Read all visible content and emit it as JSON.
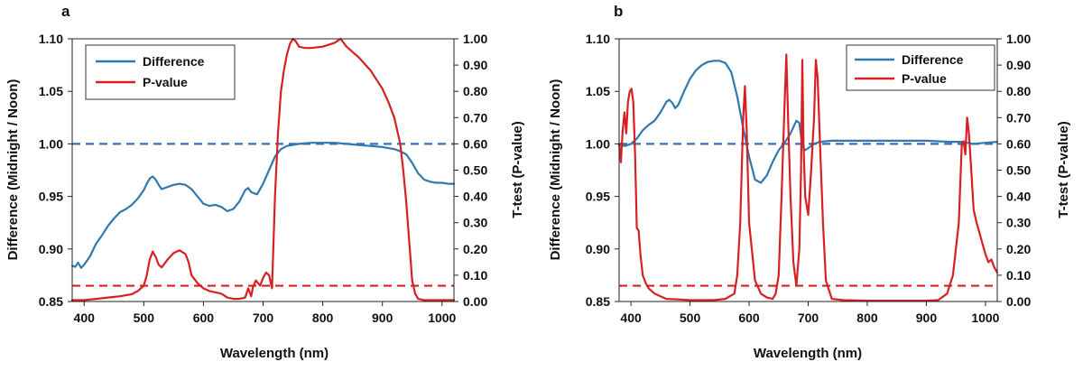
{
  "chart_data": [
    {
      "type": "line",
      "panel_label": "a",
      "xlabel": "Wavelength (nm)",
      "ylabel": "Difference (Midnight / Noon)",
      "y2label": "T-test (P-value)",
      "xlim": [
        380,
        1020
      ],
      "ylim": [
        0.85,
        1.1
      ],
      "y2lim": [
        0.0,
        1.0
      ],
      "xticks": [
        "400",
        "500",
        "600",
        "700",
        "800",
        "900",
        "1000"
      ],
      "yticks": [
        "0.85",
        "0.90",
        "0.95",
        "1.00",
        "1.05",
        "1.10"
      ],
      "y2ticks": [
        "0.00",
        "0.10",
        "0.20",
        "0.30",
        "0.40",
        "0.50",
        "0.60",
        "0.70",
        "0.80",
        "0.90",
        "1.00"
      ],
      "legend": {
        "position": "top-left",
        "entries": [
          "Difference",
          "P-value"
        ]
      },
      "reference_lines": [
        {
          "axis": "left",
          "value": 1.0,
          "color": "#3a6fb8",
          "style": "dashed"
        },
        {
          "axis": "right",
          "value": 0.06,
          "color": "#d62022",
          "style": "dashed"
        }
      ],
      "series": [
        {
          "name": "Difference",
          "axis": "left",
          "color": "#2e7ab0",
          "x": [
            380,
            385,
            390,
            395,
            400,
            410,
            420,
            430,
            440,
            450,
            460,
            470,
            480,
            490,
            500,
            505,
            510,
            515,
            520,
            525,
            530,
            540,
            550,
            560,
            570,
            580,
            590,
            600,
            610,
            620,
            630,
            640,
            650,
            660,
            670,
            675,
            680,
            690,
            700,
            710,
            720,
            730,
            740,
            750,
            760,
            780,
            800,
            820,
            840,
            860,
            880,
            900,
            910,
            920,
            930,
            940,
            950,
            960,
            970,
            980,
            990,
            1000,
            1010,
            1020
          ],
          "y": [
            0.884,
            0.883,
            0.887,
            0.882,
            0.885,
            0.893,
            0.905,
            0.913,
            0.922,
            0.929,
            0.935,
            0.938,
            0.942,
            0.948,
            0.956,
            0.962,
            0.967,
            0.969,
            0.966,
            0.961,
            0.957,
            0.959,
            0.961,
            0.962,
            0.961,
            0.957,
            0.95,
            0.943,
            0.941,
            0.942,
            0.94,
            0.936,
            0.938,
            0.945,
            0.956,
            0.958,
            0.954,
            0.952,
            0.962,
            0.975,
            0.988,
            0.995,
            0.998,
            0.999,
            1.0,
            1.001,
            1.001,
            1.001,
            1.0,
            0.999,
            0.998,
            0.997,
            0.996,
            0.995,
            0.993,
            0.99,
            0.982,
            0.972,
            0.966,
            0.964,
            0.963,
            0.963,
            0.962,
            0.962
          ]
        },
        {
          "name": "P-value",
          "axis": "right",
          "color": "#d62022",
          "x": [
            380,
            390,
            400,
            420,
            440,
            460,
            480,
            490,
            500,
            505,
            510,
            515,
            520,
            525,
            530,
            540,
            550,
            560,
            570,
            575,
            580,
            590,
            600,
            610,
            620,
            630,
            640,
            650,
            660,
            670,
            675,
            680,
            683,
            688,
            695,
            700,
            705,
            710,
            715,
            720,
            725,
            730,
            735,
            740,
            745,
            750,
            755,
            760,
            770,
            780,
            800,
            820,
            830,
            840,
            860,
            880,
            900,
            910,
            920,
            930,
            935,
            940,
            945,
            950,
            955,
            960,
            970,
            980,
            1000,
            1020
          ],
          "y": [
            0.005,
            0.005,
            0.005,
            0.01,
            0.015,
            0.02,
            0.028,
            0.04,
            0.06,
            0.1,
            0.16,
            0.19,
            0.17,
            0.14,
            0.13,
            0.16,
            0.185,
            0.195,
            0.18,
            0.15,
            0.1,
            0.07,
            0.05,
            0.04,
            0.035,
            0.03,
            0.015,
            0.01,
            0.01,
            0.015,
            0.05,
            0.02,
            0.055,
            0.08,
            0.06,
            0.09,
            0.11,
            0.1,
            0.05,
            0.4,
            0.64,
            0.8,
            0.88,
            0.94,
            0.98,
            1.0,
            0.99,
            0.97,
            0.965,
            0.965,
            0.97,
            0.985,
            1.0,
            0.97,
            0.93,
            0.88,
            0.81,
            0.76,
            0.7,
            0.6,
            0.5,
            0.38,
            0.23,
            0.08,
            0.03,
            0.01,
            0.005,
            0.005,
            0.005,
            0.005
          ]
        }
      ]
    },
    {
      "type": "line",
      "panel_label": "b",
      "xlabel": "Wavelength (nm)",
      "ylabel": "Difference (Midnight / Noon)",
      "y2label": "T-test (P-value)",
      "xlim": [
        380,
        1020
      ],
      "ylim": [
        0.85,
        1.1
      ],
      "y2lim": [
        0.0,
        1.0
      ],
      "xticks": [
        "400",
        "500",
        "600",
        "700",
        "800",
        "900",
        "1000"
      ],
      "yticks": [
        "0.85",
        "0.90",
        "0.95",
        "1.00",
        "1.05",
        "1.10"
      ],
      "y2ticks": [
        "0.00",
        "0.10",
        "0.20",
        "0.30",
        "0.40",
        "0.50",
        "0.60",
        "0.70",
        "0.80",
        "0.90",
        "1.00"
      ],
      "legend": {
        "position": "top-right",
        "entries": [
          "Difference",
          "P-value"
        ]
      },
      "reference_lines": [
        {
          "axis": "left",
          "value": 1.0,
          "color": "#3a6fb8",
          "style": "dashed"
        },
        {
          "axis": "right",
          "value": 0.06,
          "color": "#d62022",
          "style": "dashed"
        }
      ],
      "series": [
        {
          "name": "Difference",
          "axis": "left",
          "color": "#2e7ab0",
          "x": [
            380,
            390,
            400,
            410,
            420,
            430,
            440,
            450,
            460,
            465,
            470,
            475,
            480,
            490,
            500,
            510,
            520,
            530,
            540,
            550,
            560,
            570,
            580,
            590,
            600,
            610,
            620,
            630,
            640,
            650,
            660,
            670,
            680,
            685,
            690,
            695,
            700,
            710,
            720,
            740,
            760,
            800,
            850,
            900,
            940,
            960,
            980,
            1000,
            1020
          ],
          "y": [
            0.999,
            0.998,
            1.0,
            1.005,
            1.013,
            1.018,
            1.022,
            1.03,
            1.04,
            1.042,
            1.039,
            1.034,
            1.037,
            1.05,
            1.062,
            1.07,
            1.075,
            1.078,
            1.079,
            1.079,
            1.077,
            1.068,
            1.045,
            1.015,
            0.988,
            0.966,
            0.963,
            0.97,
            0.983,
            0.994,
            1.001,
            1.01,
            1.022,
            1.02,
            0.998,
            0.994,
            0.996,
            1.0,
            1.002,
            1.003,
            1.003,
            1.003,
            1.003,
            1.003,
            1.002,
            1.002,
            1.0,
            1.001,
            1.002
          ]
        },
        {
          "name": "P-value",
          "axis": "right",
          "color": "#d62022",
          "x": [
            380,
            383,
            386,
            389,
            392,
            395,
            398,
            401,
            404,
            407,
            410,
            413,
            416,
            420,
            425,
            430,
            440,
            450,
            460,
            480,
            500,
            520,
            540,
            560,
            575,
            580,
            585,
            590,
            593,
            596,
            600,
            610,
            620,
            630,
            640,
            645,
            650,
            655,
            660,
            663,
            666,
            670,
            675,
            680,
            685,
            688,
            690,
            692,
            695,
            700,
            705,
            710,
            713,
            716,
            720,
            725,
            730,
            740,
            760,
            800,
            850,
            900,
            920,
            935,
            945,
            955,
            960,
            963,
            966,
            969,
            972,
            976,
            980,
            985,
            990,
            995,
            1000,
            1005,
            1010,
            1015,
            1020
          ],
          "y": [
            0.6,
            0.53,
            0.65,
            0.72,
            0.64,
            0.76,
            0.8,
            0.81,
            0.76,
            0.56,
            0.28,
            0.27,
            0.18,
            0.1,
            0.07,
            0.05,
            0.03,
            0.02,
            0.01,
            0.008,
            0.005,
            0.005,
            0.005,
            0.01,
            0.03,
            0.1,
            0.3,
            0.7,
            0.82,
            0.65,
            0.3,
            0.08,
            0.03,
            0.015,
            0.01,
            0.03,
            0.1,
            0.4,
            0.75,
            0.94,
            0.7,
            0.4,
            0.15,
            0.06,
            0.2,
            0.5,
            0.92,
            0.6,
            0.4,
            0.33,
            0.5,
            0.7,
            0.92,
            0.85,
            0.6,
            0.3,
            0.08,
            0.01,
            0.005,
            0.003,
            0.003,
            0.003,
            0.005,
            0.03,
            0.1,
            0.3,
            0.6,
            0.61,
            0.56,
            0.7,
            0.64,
            0.5,
            0.35,
            0.3,
            0.26,
            0.22,
            0.18,
            0.15,
            0.16,
            0.13,
            0.11
          ]
        }
      ]
    }
  ]
}
